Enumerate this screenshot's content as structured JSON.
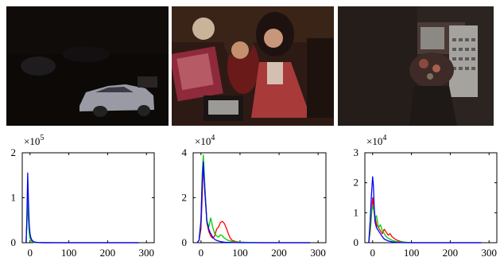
{
  "photos": [
    {
      "scene": "dark parking lot with white car"
    },
    {
      "scene": "dolls and clock under dim warm light"
    },
    {
      "scene": "dim room with flowers and calendar"
    }
  ],
  "chart_data": [
    {
      "type": "line",
      "title": "",
      "xlabel": "",
      "ylabel": "",
      "multiplier_label": {
        "base": "×10",
        "exp": "5"
      },
      "xlim": [
        -20,
        320
      ],
      "ylim": [
        0,
        2
      ],
      "xticks": [
        0,
        100,
        200,
        300
      ],
      "yticks": [
        0,
        1,
        2
      ],
      "xtick_labels": [
        "0",
        "100",
        "200",
        "300"
      ],
      "ytick_labels": [
        "0",
        "1",
        "2"
      ],
      "series": [
        {
          "color": "#ff0000",
          "x": [
            -10,
            -8,
            -6,
            -4,
            -2,
            0,
            2,
            4,
            6,
            8,
            10,
            15,
            20,
            30,
            40,
            60,
            80,
            100,
            150,
            200,
            250,
            280
          ],
          "y": [
            0,
            0.5,
            1.2,
            0.6,
            0.25,
            0.12,
            0.07,
            0.04,
            0.02,
            0.01,
            0.005,
            0.003,
            0.002,
            0.001,
            0,
            0,
            0,
            0,
            0,
            0,
            0,
            0
          ]
        },
        {
          "color": "#00cc00",
          "x": [
            -10,
            -8,
            -6,
            -4,
            -2,
            0,
            2,
            4,
            6,
            8,
            10,
            15,
            20,
            30,
            40,
            60,
            80,
            100,
            150,
            200,
            250,
            280
          ],
          "y": [
            0,
            0.4,
            1.0,
            0.5,
            0.2,
            0.1,
            0.06,
            0.03,
            0.02,
            0.01,
            0.005,
            0.003,
            0.002,
            0.001,
            0,
            0,
            0,
            0,
            0,
            0,
            0,
            0
          ]
        },
        {
          "color": "#0000ff",
          "x": [
            -10,
            -8,
            -6,
            -4,
            -2,
            0,
            2,
            4,
            6,
            8,
            10,
            15,
            20,
            30,
            40,
            60,
            80,
            100,
            150,
            200,
            250,
            280
          ],
          "y": [
            0,
            0.6,
            1.55,
            0.9,
            0.4,
            0.2,
            0.12,
            0.07,
            0.05,
            0.03,
            0.02,
            0.01,
            0.005,
            0.002,
            0.001,
            0,
            0,
            0,
            0,
            0,
            0,
            0
          ]
        }
      ]
    },
    {
      "type": "line",
      "title": "",
      "xlabel": "",
      "ylabel": "",
      "multiplier_label": {
        "base": "×10",
        "exp": "4"
      },
      "xlim": [
        -20,
        320
      ],
      "ylim": [
        0,
        4
      ],
      "xticks": [
        0,
        100,
        200,
        300
      ],
      "yticks": [
        0,
        2,
        4
      ],
      "xtick_labels": [
        "0",
        "100",
        "200",
        "300"
      ],
      "ytick_labels": [
        "0",
        "2",
        "4"
      ],
      "series": [
        {
          "color": "#ff0000",
          "x": [
            -10,
            -5,
            0,
            3,
            6,
            10,
            15,
            20,
            25,
            30,
            35,
            40,
            45,
            50,
            55,
            60,
            65,
            70,
            75,
            80,
            90,
            100,
            150,
            200,
            280
          ],
          "y": [
            0,
            0.1,
            0.6,
            2.0,
            3.5,
            2.5,
            0.9,
            0.5,
            0.3,
            0.2,
            0.3,
            0.6,
            0.7,
            0.9,
            0.95,
            0.85,
            0.65,
            0.4,
            0.2,
            0.1,
            0.05,
            0.02,
            0,
            0,
            0
          ]
        },
        {
          "color": "#00cc00",
          "x": [
            -10,
            -5,
            0,
            3,
            6,
            10,
            15,
            20,
            25,
            30,
            35,
            40,
            45,
            50,
            55,
            60,
            70,
            80,
            100,
            150,
            200,
            280
          ],
          "y": [
            0,
            0.1,
            0.9,
            3.0,
            3.9,
            2.5,
            0.9,
            0.7,
            1.1,
            0.7,
            0.4,
            0.3,
            0.25,
            0.35,
            0.3,
            0.2,
            0.1,
            0.05,
            0.02,
            0,
            0,
            0
          ]
        },
        {
          "color": "#0000ff",
          "x": [
            -10,
            -5,
            0,
            3,
            6,
            10,
            15,
            20,
            25,
            30,
            35,
            40,
            50,
            60,
            80,
            100,
            150,
            200,
            280
          ],
          "y": [
            0,
            0.1,
            1.0,
            2.6,
            3.6,
            2.2,
            1.0,
            0.6,
            0.4,
            0.25,
            0.15,
            0.1,
            0.05,
            0.02,
            0.01,
            0,
            0,
            0,
            0
          ]
        }
      ]
    },
    {
      "type": "line",
      "title": "",
      "xlabel": "",
      "ylabel": "",
      "multiplier_label": {
        "base": "×10",
        "exp": "4"
      },
      "xlim": [
        -20,
        320
      ],
      "ylim": [
        0,
        3
      ],
      "xticks": [
        0,
        100,
        200,
        300
      ],
      "yticks": [
        0,
        1,
        2,
        3
      ],
      "xtick_labels": [
        "0",
        "100",
        "200",
        "300"
      ],
      "ytick_labels": [
        "0",
        "1",
        "2",
        "3"
      ],
      "series": [
        {
          "color": "#ff0000",
          "x": [
            -10,
            -6,
            -3,
            0,
            3,
            6,
            10,
            15,
            20,
            25,
            30,
            35,
            40,
            45,
            50,
            55,
            60,
            70,
            80,
            100,
            150,
            200,
            280
          ],
          "y": [
            0,
            0.4,
            0.9,
            1.5,
            1.2,
            0.9,
            0.6,
            0.5,
            0.4,
            0.3,
            0.45,
            0.35,
            0.25,
            0.3,
            0.2,
            0.15,
            0.1,
            0.05,
            0.02,
            0,
            0,
            0,
            0
          ]
        },
        {
          "color": "#00cc00",
          "x": [
            -10,
            -6,
            -3,
            0,
            3,
            6,
            10,
            15,
            20,
            25,
            30,
            35,
            40,
            50,
            60,
            80,
            100,
            150,
            200,
            280
          ],
          "y": [
            0,
            0.5,
            1.0,
            1.2,
            1.1,
            0.8,
            0.9,
            0.5,
            0.6,
            0.4,
            0.3,
            0.2,
            0.15,
            0.08,
            0.04,
            0.02,
            0,
            0,
            0,
            0
          ]
        },
        {
          "color": "#0000ff",
          "x": [
            -10,
            -6,
            -3,
            0,
            2,
            4,
            6,
            10,
            15,
            20,
            25,
            30,
            40,
            50,
            60,
            80,
            100,
            150,
            200,
            280
          ],
          "y": [
            0,
            0.8,
            1.6,
            2.2,
            1.9,
            1.2,
            0.7,
            0.5,
            0.4,
            0.3,
            0.2,
            0.12,
            0.06,
            0.03,
            0.01,
            0,
            0,
            0,
            0,
            0
          ]
        }
      ]
    }
  ]
}
